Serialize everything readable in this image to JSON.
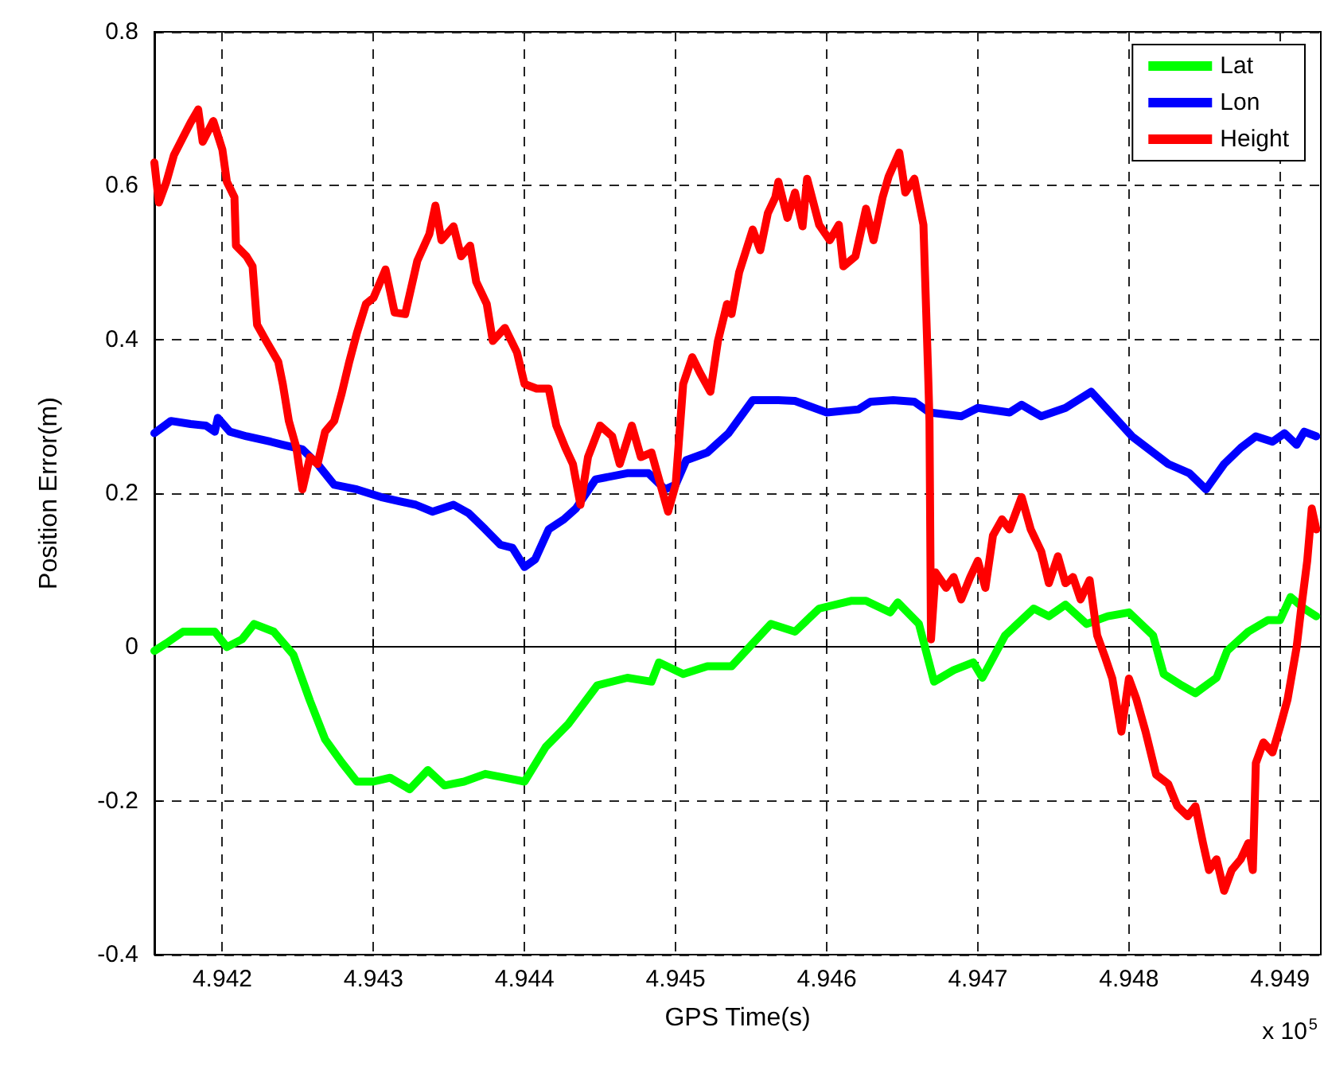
{
  "chart_data": {
    "type": "line",
    "xlabel": "GPS Time(s)",
    "ylabel": "Position Error(m)",
    "annotations": [
      "x 10$^{5}$"
    ],
    "xlim": [
      4.94155,
      4.94927
    ],
    "xticks": [
      4.942,
      4.943,
      4.944,
      4.945,
      4.946,
      4.947,
      4.948,
      4.949
    ],
    "ylim": [
      -0.4,
      0.8
    ],
    "yticks": [
      -0.4,
      -0.2,
      0,
      0.2,
      0.4,
      0.6,
      0.8
    ],
    "grid": true,
    "legend": "top right",
    "marker": "none",
    "line_style": "solid",
    "series": [
      {
        "name": "Lat",
        "color": "#00ff00",
        "x": [
          4.94155,
          4.94163,
          4.94174,
          4.94184,
          4.94195,
          4.94203,
          4.94213,
          4.94221,
          4.94234,
          4.94247,
          4.94258,
          4.94268,
          4.94279,
          4.94289,
          4.943,
          4.94311,
          4.94324,
          4.94336,
          4.94347,
          4.9436,
          4.94374,
          4.94387,
          4.944,
          4.94414,
          4.94429,
          4.94448,
          4.94468,
          4.94484,
          4.94489,
          4.94505,
          4.94521,
          4.94537,
          4.94563,
          4.94579,
          4.94595,
          4.94616,
          4.94626,
          4.94642,
          4.94647,
          4.94661,
          4.94671,
          4.94684,
          4.94697,
          4.94703,
          4.94718,
          4.94737,
          4.94747,
          4.94758,
          4.94772,
          4.94786,
          4.948,
          4.94816,
          4.94823,
          4.94835,
          4.94844,
          4.94858,
          4.94865,
          4.94879,
          4.94892,
          4.949,
          4.94907,
          4.94916,
          4.94924
        ],
        "values": [
          -0.005,
          0.005,
          0.02,
          0.02,
          0.02,
          0,
          0.01,
          0.03,
          0.02,
          -0.01,
          -0.07,
          -0.12,
          -0.15,
          -0.175,
          -0.175,
          -0.17,
          -0.185,
          -0.16,
          -0.18,
          -0.175,
          -0.165,
          -0.17,
          -0.175,
          -0.13,
          -0.1,
          -0.05,
          -0.04,
          -0.045,
          -0.02,
          -0.035,
          -0.025,
          -0.025,
          0.03,
          0.02,
          0.05,
          0.06,
          0.06,
          0.045,
          0.058,
          0.03,
          -0.045,
          -0.03,
          -0.02,
          -0.04,
          0.015,
          0.05,
          0.04,
          0.055,
          0.03,
          0.04,
          0.045,
          0.015,
          -0.035,
          -0.05,
          -0.06,
          -0.04,
          -0.005,
          0.02,
          0.035,
          0.035,
          0.065,
          0.05,
          0.04
        ]
      },
      {
        "name": "Lon",
        "color": "#0000ff",
        "x": [
          4.94155,
          4.94166,
          4.94179,
          4.94189,
          4.94195,
          4.94197,
          4.94205,
          4.94216,
          4.94232,
          4.9424,
          4.94253,
          4.94263,
          4.94274,
          4.94289,
          4.94305,
          4.94316,
          4.94328,
          4.94339,
          4.94353,
          4.94363,
          4.94374,
          4.94384,
          4.94392,
          4.944,
          4.94407,
          4.94416,
          4.94426,
          4.94434,
          4.94447,
          4.94468,
          4.94482,
          4.94493,
          4.945,
          4.94507,
          4.94521,
          4.94535,
          4.94551,
          4.94568,
          4.94579,
          4.946,
          4.94621,
          4.94629,
          4.94644,
          4.94658,
          4.94668,
          4.94689,
          4.947,
          4.94721,
          4.94729,
          4.94742,
          4.94758,
          4.94775,
          4.9479,
          4.94802,
          4.94816,
          4.94826,
          4.9484,
          4.94851,
          4.94863,
          4.94874,
          4.94884,
          4.94895,
          4.94903,
          4.94911,
          4.94916,
          4.94924
        ],
        "values": [
          0.278,
          0.294,
          0.29,
          0.288,
          0.28,
          0.298,
          0.28,
          0.274,
          0.267,
          0.263,
          0.257,
          0.238,
          0.211,
          0.205,
          0.195,
          0.19,
          0.185,
          0.176,
          0.185,
          0.174,
          0.153,
          0.133,
          0.129,
          0.104,
          0.114,
          0.153,
          0.166,
          0.18,
          0.218,
          0.226,
          0.226,
          0.205,
          0.211,
          0.243,
          0.253,
          0.278,
          0.321,
          0.321,
          0.32,
          0.305,
          0.309,
          0.319,
          0.321,
          0.319,
          0.305,
          0.3,
          0.311,
          0.305,
          0.315,
          0.3,
          0.311,
          0.332,
          0.3,
          0.274,
          0.253,
          0.238,
          0.226,
          0.205,
          0.238,
          0.259,
          0.274,
          0.267,
          0.278,
          0.263,
          0.28,
          0.274
        ]
      },
      {
        "name": "Height",
        "color": "#ff0000",
        "x": [
          4.94155,
          4.94158,
          4.94163,
          4.94168,
          4.94174,
          4.94179,
          4.94184,
          4.94187,
          4.94194,
          4.942,
          4.94203,
          4.94208,
          4.94209,
          4.94216,
          4.9422,
          4.94223,
          4.94229,
          4.94237,
          4.9424,
          4.94244,
          4.94249,
          4.94253,
          4.94258,
          4.94263,
          4.94268,
          4.94274,
          4.94279,
          4.94284,
          4.94289,
          4.94295,
          4.943,
          4.94308,
          4.94314,
          4.94321,
          4.94329,
          4.94337,
          4.94341,
          4.94345,
          4.94353,
          4.94358,
          4.94364,
          4.94368,
          4.94375,
          4.94379,
          4.94387,
          4.94395,
          4.944,
          4.94408,
          4.94416,
          4.94421,
          4.94427,
          4.94432,
          4.94437,
          4.94442,
          4.9445,
          4.94458,
          4.94463,
          4.94471,
          4.94477,
          4.94484,
          4.94489,
          4.94495,
          4.945,
          4.94505,
          4.94511,
          4.94516,
          4.94523,
          4.94528,
          4.94534,
          4.94537,
          4.94542,
          4.94551,
          4.94556,
          4.94561,
          4.94566,
          4.94568,
          4.94574,
          4.94579,
          4.94584,
          4.94587,
          4.94595,
          4.94602,
          4.94608,
          4.94611,
          4.94619,
          4.94626,
          4.94631,
          4.94637,
          4.94641,
          4.94648,
          4.94652,
          4.94658,
          4.94664,
          4.94667,
          4.94668,
          4.94669,
          4.94672,
          4.94679,
          4.94684,
          4.94689,
          4.94695,
          4.947,
          4.94705,
          4.9471,
          4.94716,
          4.94721,
          4.94729,
          4.94735,
          4.94742,
          4.94747,
          4.94753,
          4.94758,
          4.94763,
          4.94768,
          4.94774,
          4.94779,
          4.94784,
          4.94789,
          4.94795,
          4.948,
          4.94805,
          4.94811,
          4.94818,
          4.94826,
          4.94832,
          4.94839,
          4.94844,
          4.94849,
          4.94853,
          4.94858,
          4.94863,
          4.94868,
          4.94874,
          4.94879,
          4.94882,
          4.94884,
          4.94889,
          4.94895,
          4.949,
          4.94905,
          4.94911,
          4.94914,
          4.94918,
          4.94921,
          4.94924
        ],
        "values": [
          0.63,
          0.578,
          0.605,
          0.64,
          0.663,
          0.682,
          0.699,
          0.657,
          0.684,
          0.647,
          0.605,
          0.585,
          0.522,
          0.508,
          0.495,
          0.419,
          0.398,
          0.371,
          0.342,
          0.294,
          0.259,
          0.205,
          0.247,
          0.238,
          0.28,
          0.294,
          0.33,
          0.371,
          0.408,
          0.446,
          0.454,
          0.491,
          0.435,
          0.433,
          0.502,
          0.537,
          0.574,
          0.529,
          0.547,
          0.508,
          0.522,
          0.475,
          0.446,
          0.398,
          0.415,
          0.383,
          0.342,
          0.336,
          0.336,
          0.288,
          0.259,
          0.238,
          0.185,
          0.247,
          0.288,
          0.274,
          0.238,
          0.288,
          0.247,
          0.253,
          0.218,
          0.176,
          0.211,
          0.342,
          0.377,
          0.357,
          0.332,
          0.398,
          0.446,
          0.433,
          0.487,
          0.543,
          0.516,
          0.564,
          0.585,
          0.605,
          0.558,
          0.591,
          0.547,
          0.609,
          0.549,
          0.529,
          0.549,
          0.495,
          0.508,
          0.57,
          0.529,
          0.585,
          0.612,
          0.643,
          0.591,
          0.609,
          0.549,
          0.363,
          0.294,
          0.01,
          0.097,
          0.077,
          0.091,
          0.062,
          0.091,
          0.112,
          0.077,
          0.145,
          0.166,
          0.153,
          0.195,
          0.153,
          0.124,
          0.083,
          0.118,
          0.083,
          0.091,
          0.062,
          0.087,
          0.015,
          -0.012,
          -0.041,
          -0.11,
          -0.041,
          -0.068,
          -0.11,
          -0.166,
          -0.178,
          -0.207,
          -0.22,
          -0.207,
          -0.255,
          -0.29,
          -0.276,
          -0.317,
          -0.29,
          -0.276,
          -0.255,
          -0.29,
          -0.151,
          -0.124,
          -0.137,
          -0.104,
          -0.068,
          0,
          0.05,
          0.112,
          0.18,
          0.153
        ]
      }
    ]
  }
}
